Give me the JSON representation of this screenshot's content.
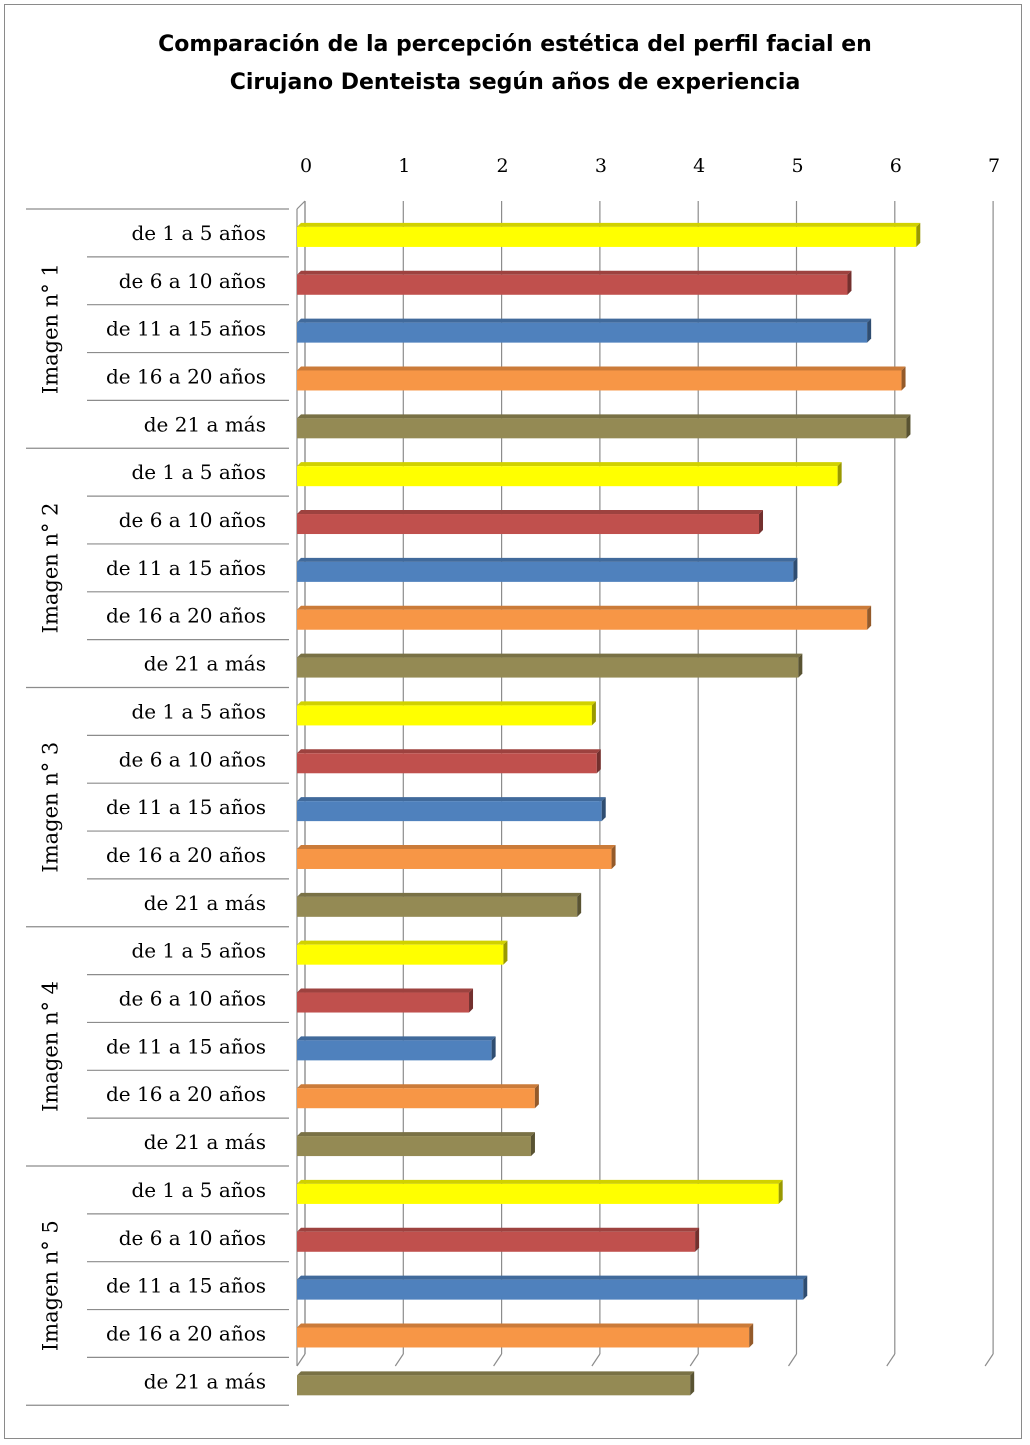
{
  "chart_data": {
    "type": "bar",
    "orientation": "horizontal",
    "title_lines": [
      "Comparación de  la percepción estética del perfil facial en",
      "Cirujano Denteista según años de experiencia"
    ],
    "xlim": [
      0,
      7
    ],
    "x_ticks": [
      "0",
      "1",
      "2",
      "3",
      "4",
      "5",
      "6",
      "7"
    ],
    "grid": true,
    "categories": [
      "de 1 a 5 años",
      "de 6 a 10 años",
      "de 11 a 15 años",
      "de 16 a 20 años",
      "de 21 a más"
    ],
    "category_colors": [
      "#FFFF00",
      "#C0504D",
      "#4F81BD",
      "#F79646",
      "#948A54"
    ],
    "groups": [
      {
        "label": "Imagen n° 1",
        "values": [
          6.3,
          5.6,
          5.8,
          6.15,
          6.2
        ]
      },
      {
        "label": "Imagen n° 2",
        "values": [
          5.5,
          4.7,
          5.05,
          5.8,
          5.1
        ]
      },
      {
        "label": "Imagen n° 3",
        "values": [
          3.0,
          3.05,
          3.1,
          3.2,
          2.85
        ]
      },
      {
        "label": "Imagen n° 4",
        "values": [
          2.1,
          1.75,
          1.98,
          2.42,
          2.38
        ]
      },
      {
        "label": "Imagen n° 5",
        "values": [
          4.9,
          4.05,
          5.15,
          4.6,
          4.0
        ]
      }
    ]
  }
}
